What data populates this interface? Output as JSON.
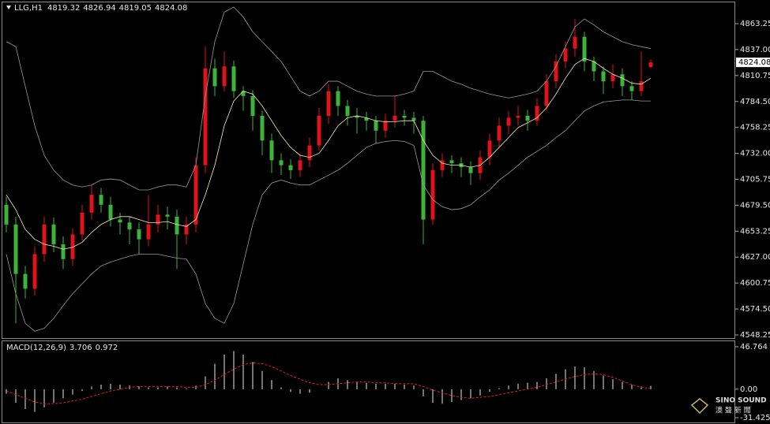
{
  "chart_data": [
    {
      "type": "candlestick",
      "title": "LLG,H1",
      "up_color": "#e0121a",
      "down_color": "#3cb43c",
      "ylim": [
        4544.25,
        4884.8
      ],
      "yticks": [
        4548.25,
        {
          "value": 4574.5,
          "label": "4574.50"
        },
        4600.75,
        {
          "value": 4627,
          "label": "4627.00"
        },
        4653.25,
        {
          "value": 4679.5,
          "label": "4679.50"
        },
        4705.75,
        {
          "value": 4732,
          "label": "4732.00"
        },
        4758.25,
        {
          "value": 4784.5,
          "label": "4784.50"
        },
        4810.75,
        {
          "value": 4837,
          "label": "4837.00"
        },
        4863.25
      ],
      "open": [
        4680,
        4660,
        4610,
        4595,
        4630,
        4660,
        4640,
        4625,
        4650,
        4672,
        4690,
        4680,
        4665,
        4662,
        4655,
        4645,
        4660,
        4670,
        4668,
        4650,
        4660,
        4720,
        4818,
        4800,
        4820,
        4795,
        4790,
        4770,
        4745,
        4725,
        4720,
        4715,
        4725,
        4740,
        4770,
        4795,
        4780,
        4770,
        4768,
        4765,
        4755,
        4765,
        4770,
        4768,
        4765,
        4665,
        4715,
        4725,
        4722,
        4718,
        4712,
        4728,
        4745,
        4760,
        4768,
        4770,
        4765,
        4780,
        4805,
        4825,
        4838,
        4850,
        4825,
        4815,
        4805,
        4812,
        4800,
        4795,
        4819.32
      ],
      "high": [
        4688,
        4668,
        4618,
        4638,
        4668,
        4667,
        4648,
        4656,
        4680,
        4700,
        4697,
        4688,
        4672,
        4668,
        4662,
        4690,
        4680,
        4678,
        4675,
        4668,
        4728,
        4840,
        4828,
        4835,
        4826,
        4800,
        4796,
        4775,
        4752,
        4732,
        4726,
        4732,
        4748,
        4778,
        4802,
        4800,
        4786,
        4778,
        4774,
        4770,
        4772,
        4790,
        4776,
        4774,
        4770,
        4722,
        4732,
        4730,
        4728,
        4724,
        4735,
        4752,
        4768,
        4775,
        4780,
        4776,
        4788,
        4812,
        4832,
        4845,
        4868,
        4855,
        4830,
        4820,
        4822,
        4818,
        4805,
        4835,
        4826.94
      ],
      "low": [
        4652,
        4560,
        4585,
        4588,
        4622,
        4632,
        4615,
        4618,
        4644,
        4665,
        4672,
        4658,
        4650,
        4640,
        4630,
        4638,
        4652,
        4655,
        4615,
        4640,
        4652,
        4712,
        4790,
        4795,
        4788,
        4775,
        4755,
        4730,
        4712,
        4710,
        4706,
        4708,
        4718,
        4735,
        4762,
        4770,
        4760,
        4752,
        4755,
        4742,
        4748,
        4758,
        4760,
        4752,
        4640,
        4660,
        4708,
        4712,
        4708,
        4700,
        4705,
        4720,
        4738,
        4752,
        4760,
        4755,
        4760,
        4775,
        4798,
        4818,
        4830,
        4815,
        4805,
        4792,
        4798,
        4790,
        4786,
        4790,
        4819.05
      ],
      "close": [
        4660,
        4610,
        4595,
        4630,
        4660,
        4640,
        4625,
        4650,
        4672,
        4690,
        4680,
        4665,
        4662,
        4655,
        4645,
        4660,
        4670,
        4668,
        4650,
        4660,
        4720,
        4818,
        4800,
        4820,
        4795,
        4790,
        4770,
        4745,
        4725,
        4720,
        4715,
        4725,
        4740,
        4770,
        4795,
        4780,
        4770,
        4768,
        4765,
        4755,
        4765,
        4770,
        4768,
        4765,
        4665,
        4715,
        4725,
        4722,
        4718,
        4712,
        4728,
        4745,
        4760,
        4768,
        4770,
        4765,
        4780,
        4805,
        4825,
        4838,
        4850,
        4825,
        4815,
        4805,
        4812,
        4800,
        4795,
        4805,
        4824.08
      ],
      "lines": [
        {
          "color": "#9a9a9a",
          "values": [
            4845,
            4840,
            4800,
            4760,
            4730,
            4715,
            4705,
            4700,
            4698,
            4700,
            4705,
            4706,
            4705,
            4700,
            4695,
            4695,
            4698,
            4700,
            4700,
            4698,
            4720,
            4790,
            4845,
            4875,
            4880,
            4870,
            4855,
            4845,
            4835,
            4825,
            4810,
            4795,
            4790,
            4795,
            4805,
            4805,
            4800,
            4795,
            4792,
            4790,
            4790,
            4790,
            4792,
            4795,
            4815,
            4815,
            4810,
            4805,
            4802,
            4798,
            4795,
            4792,
            4790,
            4788,
            4790,
            4792,
            4795,
            4805,
            4820,
            4840,
            4860,
            4868,
            4862,
            4855,
            4850,
            4845,
            4842,
            4840,
            4838
          ]
        },
        {
          "color": "#9a9a9a",
          "values": [
            4630,
            4590,
            4560,
            4552,
            4555,
            4565,
            4578,
            4590,
            4600,
            4610,
            4618,
            4622,
            4625,
            4628,
            4630,
            4630,
            4630,
            4628,
            4626,
            4625,
            4610,
            4580,
            4565,
            4560,
            4580,
            4620,
            4660,
            4690,
            4702,
            4705,
            4702,
            4700,
            4700,
            4705,
            4710,
            4715,
            4722,
            4730,
            4738,
            4742,
            4744,
            4745,
            4744,
            4740,
            4700,
            4685,
            4678,
            4675,
            4676,
            4680,
            4688,
            4695,
            4705,
            4712,
            4720,
            4728,
            4734,
            4740,
            4748,
            4755,
            4765,
            4775,
            4780,
            4784,
            4785,
            4786,
            4786,
            4785,
            4785
          ]
        },
        {
          "color": "#f4f0b0",
          "values": [
            4690,
            4675,
            4655,
            4645,
            4640,
            4638,
            4635,
            4637,
            4642,
            4652,
            4660,
            4665,
            4668,
            4668,
            4665,
            4662,
            4662,
            4663,
            4660,
            4658,
            4665,
            4690,
            4720,
            4760,
            4785,
            4795,
            4792,
            4780,
            4765,
            4750,
            4738,
            4730,
            4728,
            4732,
            4745,
            4760,
            4768,
            4770,
            4768,
            4765,
            4764,
            4764,
            4765,
            4765,
            4745,
            4730,
            4722,
            4720,
            4720,
            4718,
            4720,
            4728,
            4738,
            4748,
            4758,
            4763,
            4768,
            4778,
            4792,
            4808,
            4822,
            4828,
            4825,
            4818,
            4812,
            4808,
            4803,
            4802,
            4808
          ]
        }
      ]
    },
    {
      "type": "macd",
      "title": "MACD(12,26,9)",
      "ylim": [
        -36.6,
        51.9
      ],
      "yticks": [
        46.764,
        {
          "value": 0,
          "label": "0.00"
        },
        -31.425
      ],
      "histogram": {
        "color": "#e8e8e8",
        "values": [
          -5,
          -15,
          -22,
          -25,
          -20,
          -15,
          -10,
          -6,
          -2,
          3,
          5,
          6,
          5,
          4,
          3,
          2,
          2,
          3,
          2,
          1,
          4,
          14,
          28,
          38,
          42,
          38,
          30,
          20,
          10,
          2,
          -3,
          -5,
          -4,
          0,
          8,
          12,
          10,
          8,
          7,
          6,
          6,
          6,
          5,
          4,
          -8,
          -15,
          -16,
          -14,
          -12,
          -10,
          -7,
          -3,
          1,
          4,
          6,
          7,
          8,
          12,
          17,
          22,
          25,
          24,
          20,
          15,
          11,
          8,
          5,
          3,
          3.706
        ]
      },
      "signal": {
        "color": "#e02020",
        "values": [
          -2,
          -6,
          -10,
          -14,
          -16,
          -16,
          -15,
          -13,
          -11,
          -8,
          -5,
          -2,
          0,
          2,
          3,
          3,
          3,
          3,
          3,
          2,
          2,
          5,
          10,
          16,
          22,
          27,
          29,
          28,
          25,
          20,
          15,
          11,
          7,
          5,
          5,
          6,
          7,
          8,
          8,
          7,
          7,
          6,
          6,
          6,
          3,
          -1,
          -4,
          -7,
          -9,
          -10,
          -9,
          -8,
          -6,
          -4,
          -2,
          0,
          2,
          5,
          8,
          11,
          14,
          16,
          17,
          16,
          13,
          9,
          5,
          2,
          0.972
        ]
      }
    },
    {
      "type": "watermark",
      "title": "SINO SOUND",
      "subtitle": "澳 聲 新 聞"
    }
  ]
}
